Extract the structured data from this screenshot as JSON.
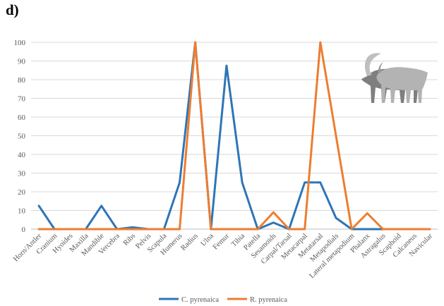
{
  "figure": {
    "panel_label": "d)"
  },
  "chart_data": {
    "type": "line",
    "title": "",
    "xlabel": "",
    "ylabel": "",
    "ylim": [
      0,
      100
    ],
    "yticks": [
      0,
      10,
      20,
      30,
      40,
      50,
      60,
      70,
      80,
      90,
      100
    ],
    "grid": true,
    "legend_position": "bottom",
    "categories": [
      "Horn/Antler",
      "Cranium",
      "Hyoides",
      "Maxilla",
      "Mandible",
      "Vercebra",
      "Ribs",
      "Pelvis",
      "Scapula",
      "Humerus",
      "Radius",
      "Ulna",
      "Femur",
      "Tibia",
      "Patella",
      "Sesamoids",
      "Carpal/Tarsal",
      "Metacarpal",
      "Metatarsal",
      "Metapodials",
      "Lateral metapodium",
      "Phalanx",
      "Astragalus",
      "Scaphoid",
      "Calcaneus",
      "Navicular"
    ],
    "series": [
      {
        "name": "C. pyrenaica",
        "color": "#2e75b6",
        "values": [
          12.5,
          0,
          0,
          0,
          12.5,
          0,
          1,
          0,
          0,
          25,
          100,
          0,
          87.5,
          25,
          0,
          3.5,
          0,
          25,
          25,
          6,
          0,
          0,
          0,
          0,
          0,
          0
        ]
      },
      {
        "name": "R. pyrenaica",
        "color": "#ed7d31",
        "values": [
          0,
          0,
          0,
          0,
          0,
          0,
          0,
          0,
          0,
          0,
          100,
          0,
          0,
          0,
          0,
          9,
          0,
          0,
          100,
          50,
          0,
          8.5,
          0,
          0,
          0,
          0
        ]
      }
    ]
  }
}
